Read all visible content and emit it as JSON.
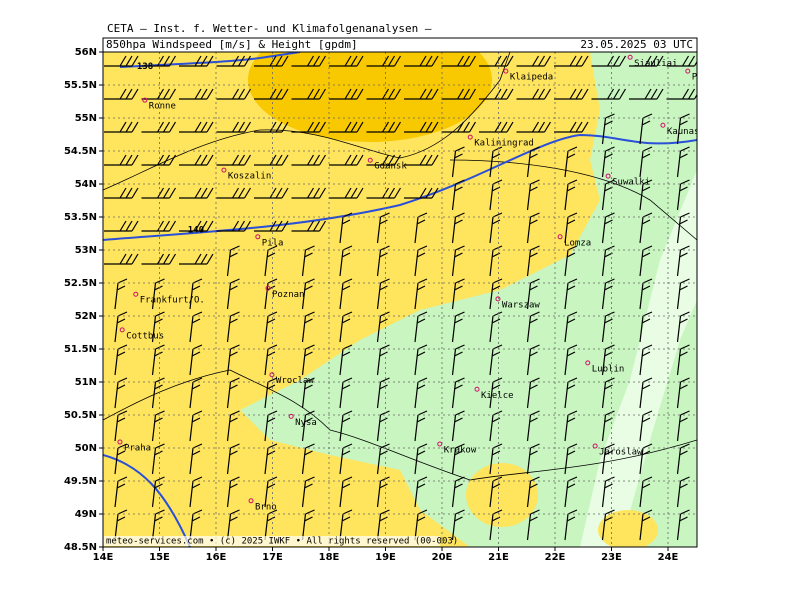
{
  "header": {
    "institute": "CETA – Inst. f. Wetter- und Klimafolgenanalysen –",
    "title": "850hpa Windspeed [m/s] & Height [gpdm]",
    "date": "23.05.2025 03 UTC"
  },
  "map": {
    "lon_ticks": [
      {
        "value": 14,
        "label": "14E"
      },
      {
        "value": 15,
        "label": "15E"
      },
      {
        "value": 16,
        "label": "16E"
      },
      {
        "value": 17,
        "label": "17E"
      },
      {
        "value": 18,
        "label": "18E"
      },
      {
        "value": 19,
        "label": "19E"
      },
      {
        "value": 20,
        "label": "20E"
      },
      {
        "value": 21,
        "label": "21E"
      },
      {
        "value": 22,
        "label": "22E"
      },
      {
        "value": 23,
        "label": "23E"
      },
      {
        "value": 24,
        "label": "24E"
      }
    ],
    "lat_ticks": [
      {
        "value": 56,
        "label": "56N"
      },
      {
        "value": 55.5,
        "label": "55.5N"
      },
      {
        "value": 55,
        "label": "55N"
      },
      {
        "value": 54.5,
        "label": "54.5N"
      },
      {
        "value": 54,
        "label": "54N"
      },
      {
        "value": 53.5,
        "label": "53.5N"
      },
      {
        "value": 53,
        "label": "53N"
      },
      {
        "value": 52.5,
        "label": "52.5N"
      },
      {
        "value": 52,
        "label": "52N"
      },
      {
        "value": 51.5,
        "label": "51.5N"
      },
      {
        "value": 51,
        "label": "51N"
      },
      {
        "value": 50.5,
        "label": "50.5N"
      },
      {
        "value": 50,
        "label": "50N"
      },
      {
        "value": 49.5,
        "label": "49.5N"
      },
      {
        "value": 49,
        "label": "49N"
      },
      {
        "value": 48.5,
        "label": "48.5N"
      }
    ],
    "contour_labels": [
      {
        "text": "138",
        "lon": 14.6,
        "lat": 55.78
      },
      {
        "text": "140",
        "lon": 15.5,
        "lat": 53.3
      }
    ],
    "cities": [
      {
        "name": "Siauliai",
        "lon": 23.33,
        "lat": 55.92
      },
      {
        "name": "Panevezys",
        "lon": 24.35,
        "lat": 55.71
      },
      {
        "name": "Klaipeda",
        "lon": 21.13,
        "lat": 55.71
      },
      {
        "name": "Ronne",
        "lon": 14.74,
        "lat": 55.27
      },
      {
        "name": "Kaunas",
        "lon": 23.91,
        "lat": 54.89
      },
      {
        "name": "Kaliningrad",
        "lon": 20.5,
        "lat": 54.71
      },
      {
        "name": "Gdansk",
        "lon": 18.73,
        "lat": 54.36
      },
      {
        "name": "Suwalki",
        "lon": 22.94,
        "lat": 54.12
      },
      {
        "name": "Koszalin",
        "lon": 16.14,
        "lat": 54.21
      },
      {
        "name": "Pila",
        "lon": 16.74,
        "lat": 53.2
      },
      {
        "name": "Lomza",
        "lon": 22.09,
        "lat": 53.2
      },
      {
        "name": "Frankfurt/O.",
        "lon": 14.58,
        "lat": 52.33
      },
      {
        "name": "Poznan",
        "lon": 16.92,
        "lat": 52.42
      },
      {
        "name": "Warszaw",
        "lon": 20.99,
        "lat": 52.26
      },
      {
        "name": "Cottbus",
        "lon": 14.34,
        "lat": 51.79
      },
      {
        "name": "Lublin",
        "lon": 22.58,
        "lat": 51.29
      },
      {
        "name": "Wroclaw",
        "lon": 16.99,
        "lat": 51.11
      },
      {
        "name": "Nysa",
        "lon": 17.33,
        "lat": 50.48
      },
      {
        "name": "Kielce",
        "lon": 20.62,
        "lat": 50.89
      },
      {
        "name": "Praha",
        "lon": 14.3,
        "lat": 50.09
      },
      {
        "name": "Krakow",
        "lon": 19.96,
        "lat": 50.06
      },
      {
        "name": "Jaroslaw",
        "lon": 22.71,
        "lat": 50.03
      },
      {
        "name": "Brno",
        "lon": 16.62,
        "lat": 49.2
      }
    ]
  },
  "footer": "meteo-services.com • (c) 2025 IWKF • All rights reserved (00-003)"
}
